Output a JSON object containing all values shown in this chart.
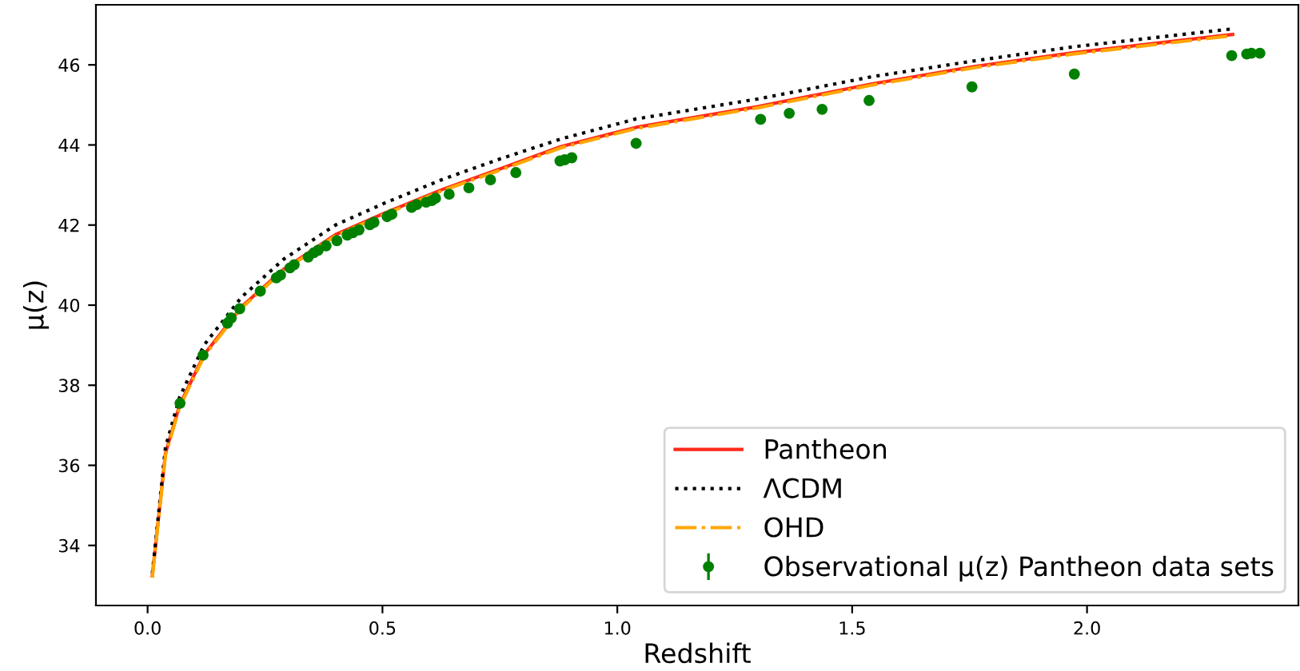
{
  "chart_data": {
    "type": "line",
    "xlabel": "Redshift",
    "ylabel": "μ(z)",
    "xlim": [
      -0.11,
      2.45
    ],
    "ylim": [
      32.5,
      47.5
    ],
    "xticks": [
      {
        "value": 0,
        "label": "0.0"
      },
      {
        "value": 0.5,
        "label": "0.5"
      },
      {
        "value": 1,
        "label": "1.0"
      },
      {
        "value": 1.5,
        "label": "1.5"
      },
      {
        "value": 2,
        "label": "2.0"
      }
    ],
    "yticks": [
      34,
      36,
      38,
      40,
      42,
      44,
      46
    ],
    "grid": false,
    "legend": "bottom right",
    "series": [
      {
        "name": "Pantheon",
        "color": "#ff2a1a",
        "line_style": "solid",
        "x": [
          0.01,
          0.038,
          0.068,
          0.12,
          0.2,
          0.29,
          0.4,
          0.505,
          0.63,
          0.75,
          0.88,
          1.04,
          1.3,
          1.54,
          1.76,
          1.97,
          2.31
        ],
        "values": [
          33.24,
          36.3,
          37.5,
          38.76,
          39.96,
          40.9,
          41.76,
          42.3,
          42.9,
          43.4,
          43.96,
          44.44,
          44.96,
          45.52,
          45.96,
          46.3,
          46.76
        ]
      },
      {
        "name": "ΛCDM",
        "color": "#000000",
        "line_style": "dotted",
        "x": [
          0.01,
          0.038,
          0.068,
          0.12,
          0.2,
          0.29,
          0.4,
          0.505,
          0.63,
          0.75,
          0.88,
          1.04,
          1.3,
          1.54,
          1.76,
          1.97,
          2.31
        ],
        "values": [
          33.3,
          36.45,
          37.7,
          39.0,
          40.2,
          41.15,
          42.0,
          42.55,
          43.15,
          43.65,
          44.15,
          44.65,
          45.15,
          45.7,
          46.1,
          46.45,
          46.9
        ]
      },
      {
        "name": "OHD",
        "color": "#ffa500",
        "line_style": "dashdot",
        "x": [
          0.01,
          0.038,
          0.068,
          0.12,
          0.2,
          0.29,
          0.4,
          0.505,
          0.63,
          0.75,
          0.88,
          1.04,
          1.3,
          1.54,
          1.76,
          1.97,
          2.31
        ],
        "values": [
          33.2,
          36.25,
          37.45,
          38.72,
          39.93,
          40.87,
          41.73,
          42.27,
          42.87,
          43.37,
          43.93,
          44.41,
          44.93,
          45.49,
          45.93,
          46.27,
          46.73
        ]
      },
      {
        "name": "Observational μ(z) Pantheon data sets",
        "type": "scatter",
        "color": "#008000",
        "marker": "circle",
        "x": [
          0.069,
          0.118,
          0.17,
          0.178,
          0.196,
          0.24,
          0.274,
          0.283,
          0.303,
          0.312,
          0.342,
          0.354,
          0.363,
          0.38,
          0.403,
          0.425,
          0.437,
          0.45,
          0.473,
          0.482,
          0.51,
          0.52,
          0.562,
          0.573,
          0.593,
          0.605,
          0.613,
          0.642,
          0.684,
          0.73,
          0.784,
          0.878,
          0.888,
          0.903,
          1.04,
          1.305,
          1.366,
          1.436,
          1.536,
          1.755,
          1.973,
          2.308,
          2.34,
          2.35,
          2.368
        ],
        "values": [
          37.55,
          38.75,
          39.55,
          39.68,
          39.91,
          40.35,
          40.68,
          40.75,
          40.93,
          41.01,
          41.2,
          41.31,
          41.37,
          41.48,
          41.61,
          41.75,
          41.81,
          41.88,
          42.01,
          42.07,
          42.21,
          42.27,
          42.44,
          42.51,
          42.57,
          42.61,
          42.67,
          42.77,
          42.93,
          43.13,
          43.31,
          43.6,
          43.63,
          43.68,
          44.04,
          44.64,
          44.79,
          44.89,
          45.11,
          45.45,
          45.77,
          46.23,
          46.27,
          46.29,
          46.29
        ],
        "errors": [
          0.1,
          0.1,
          0.1,
          0.1,
          0.1,
          0.1,
          0.1,
          0.1,
          0.1,
          0.1,
          0.1,
          0.1,
          0.1,
          0.1,
          0.1,
          0.1,
          0.1,
          0.1,
          0.1,
          0.1,
          0.1,
          0.1,
          0.1,
          0.1,
          0.1,
          0.1,
          0.1,
          0.1,
          0.1,
          0.1,
          0.1,
          0.1,
          0.1,
          0.1,
          0.1,
          0.1,
          0.1,
          0.1,
          0.1,
          0.1,
          0.1,
          0.1,
          0.1,
          0.1,
          0.1
        ]
      }
    ]
  }
}
